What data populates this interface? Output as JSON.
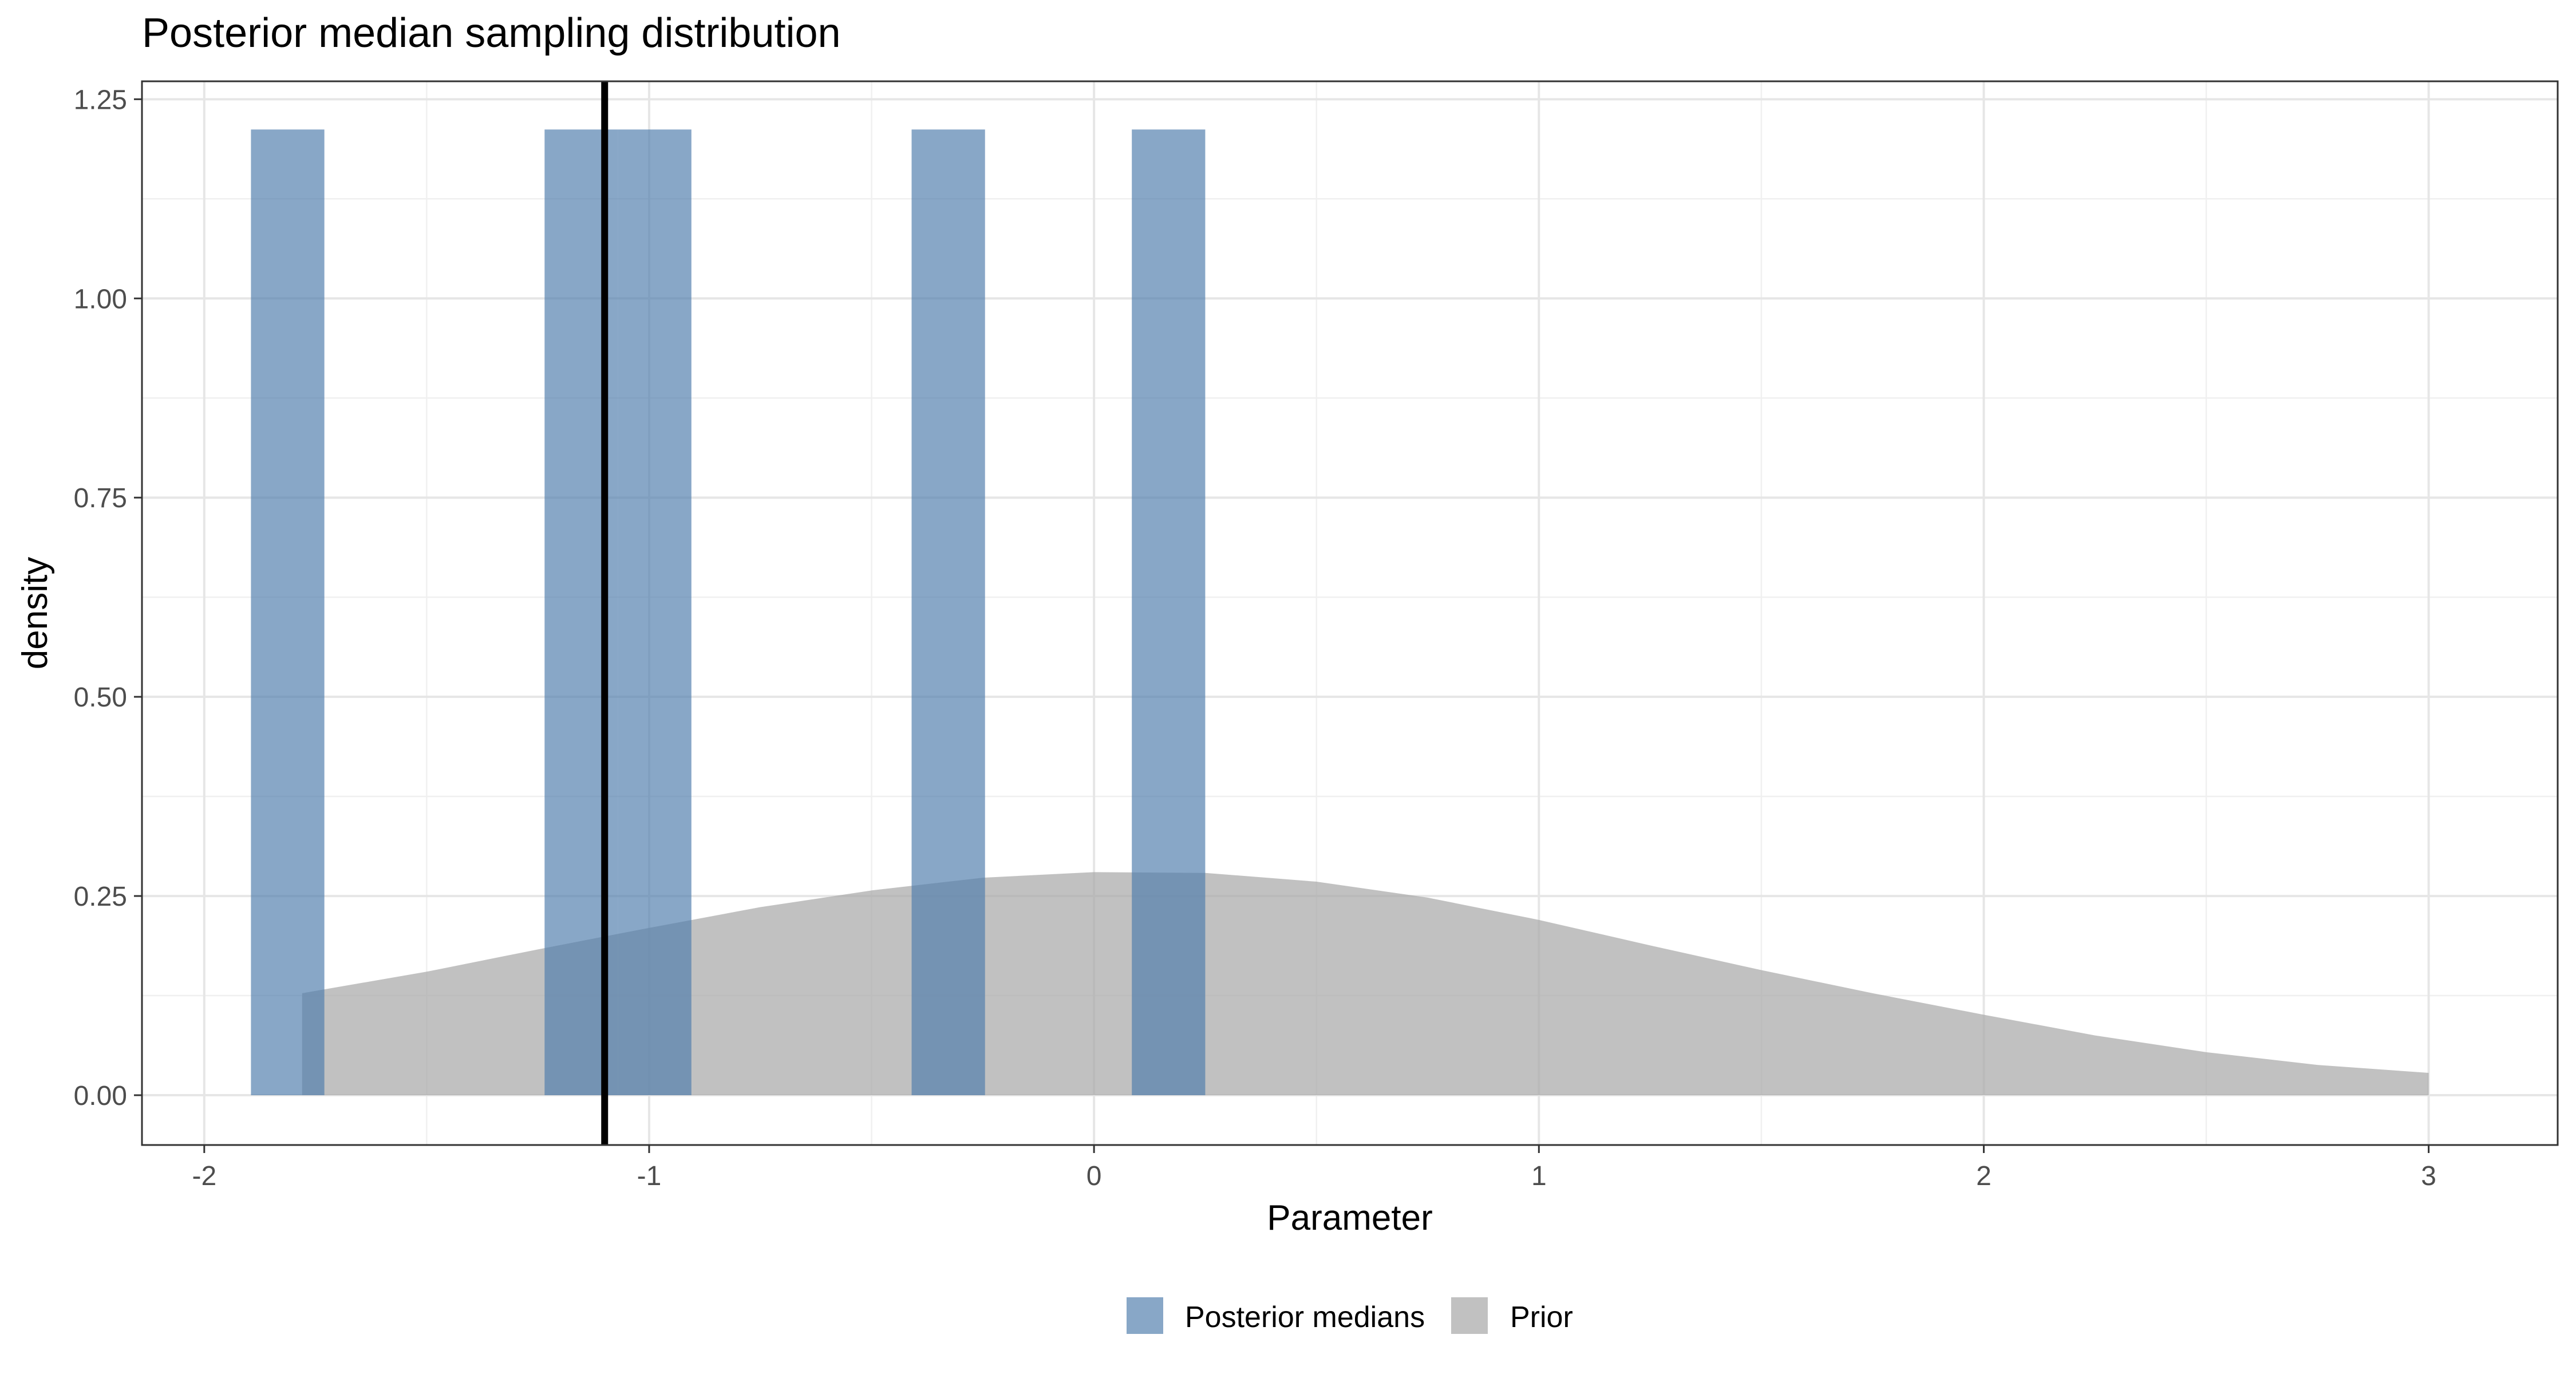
{
  "chart_data": {
    "type": "bar",
    "title": "Posterior median sampling distribution",
    "xlabel": "Parameter",
    "ylabel": "density",
    "xlim": [
      -2.14,
      3.29
    ],
    "ylim": [
      -0.0625,
      1.2725
    ],
    "grid": true,
    "x_ticks": [
      -2,
      -1,
      0,
      1,
      2,
      3
    ],
    "x_tick_labels": [
      "-2",
      "-1",
      "0",
      "1",
      "2",
      "3"
    ],
    "y_ticks": [
      0,
      0.25,
      0.5,
      0.75,
      1.0,
      1.25
    ],
    "y_tick_labels": [
      "0.00",
      "0.25",
      "0.50",
      "0.75",
      "1.00",
      "1.25"
    ],
    "legend_position": "bottom",
    "series": [
      {
        "name": "Posterior medians",
        "type": "histogram",
        "color": "#4F7DAD",
        "opacity": 0.68,
        "bins": [
          {
            "x0": -1.895,
            "x1": -1.73,
            "density": 1.212
          },
          {
            "x0": -1.235,
            "x1": -1.07,
            "density": 1.212
          },
          {
            "x0": -1.07,
            "x1": -0.905,
            "density": 1.212
          },
          {
            "x0": -0.41,
            "x1": -0.245,
            "density": 1.212
          },
          {
            "x0": 0.085,
            "x1": 0.25,
            "density": 1.212
          }
        ]
      },
      {
        "name": "Prior",
        "type": "area",
        "color": "#A6A6A6",
        "opacity": 0.7,
        "x": [
          -1.78,
          -1.5,
          -1.25,
          -1.0,
          -0.75,
          -0.5,
          -0.25,
          0.0,
          0.25,
          0.5,
          0.75,
          1.0,
          1.25,
          1.5,
          1.75,
          2.0,
          2.25,
          2.5,
          2.75,
          3.0
        ],
        "y": [
          0.128,
          0.155,
          0.183,
          0.21,
          0.236,
          0.257,
          0.273,
          0.28,
          0.279,
          0.268,
          0.248,
          0.22,
          0.188,
          0.157,
          0.128,
          0.101,
          0.075,
          0.054,
          0.038,
          0.028
        ]
      }
    ],
    "vline": {
      "x": -1.1,
      "color": "#000000"
    }
  }
}
